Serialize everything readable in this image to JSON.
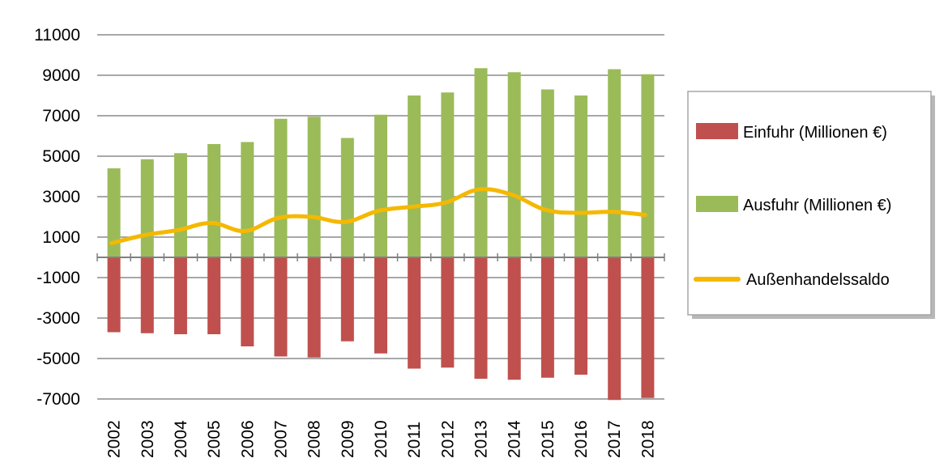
{
  "chart_data": {
    "type": "bar",
    "categories": [
      "2002",
      "2003",
      "2004",
      "2005",
      "2006",
      "2007",
      "2008",
      "2009",
      "2010",
      "2011",
      "2012",
      "2013",
      "2014",
      "2015",
      "2016",
      "2017",
      "2018"
    ],
    "series": [
      {
        "name": "Einfuhr (Millionen €)",
        "type": "bar",
        "color": "#c0504d",
        "values": [
          -3700,
          -3750,
          -3800,
          -3800,
          -4400,
          -4900,
          -4950,
          -4150,
          -4750,
          -5500,
          -5450,
          -6000,
          -6050,
          -5950,
          -5800,
          -7050,
          -6950
        ]
      },
      {
        "name": "Ausfuhr (Millionen €)",
        "type": "bar",
        "color": "#9bbb59",
        "values": [
          4400,
          4850,
          5150,
          5600,
          5700,
          6850,
          6950,
          5900,
          7050,
          8000,
          8150,
          9350,
          9150,
          8300,
          8000,
          9300,
          9050
        ]
      },
      {
        "name": "Außenhandelssaldo",
        "type": "line",
        "color": "#f5b800",
        "values": [
          700,
          1100,
          1350,
          1700,
          1300,
          1950,
          2000,
          1750,
          2300,
          2500,
          2700,
          3350,
          3100,
          2350,
          2200,
          2250,
          2100
        ]
      }
    ],
    "yticks": [
      "11000",
      "9000",
      "7000",
      "5000",
      "3000",
      "1000",
      "-1000",
      "-3000",
      "-5000",
      "-7000"
    ],
    "ylim": [
      -7000,
      11000
    ],
    "grid": true,
    "legend_position": "right",
    "xlabel": "",
    "ylabel": "",
    "title": ""
  }
}
